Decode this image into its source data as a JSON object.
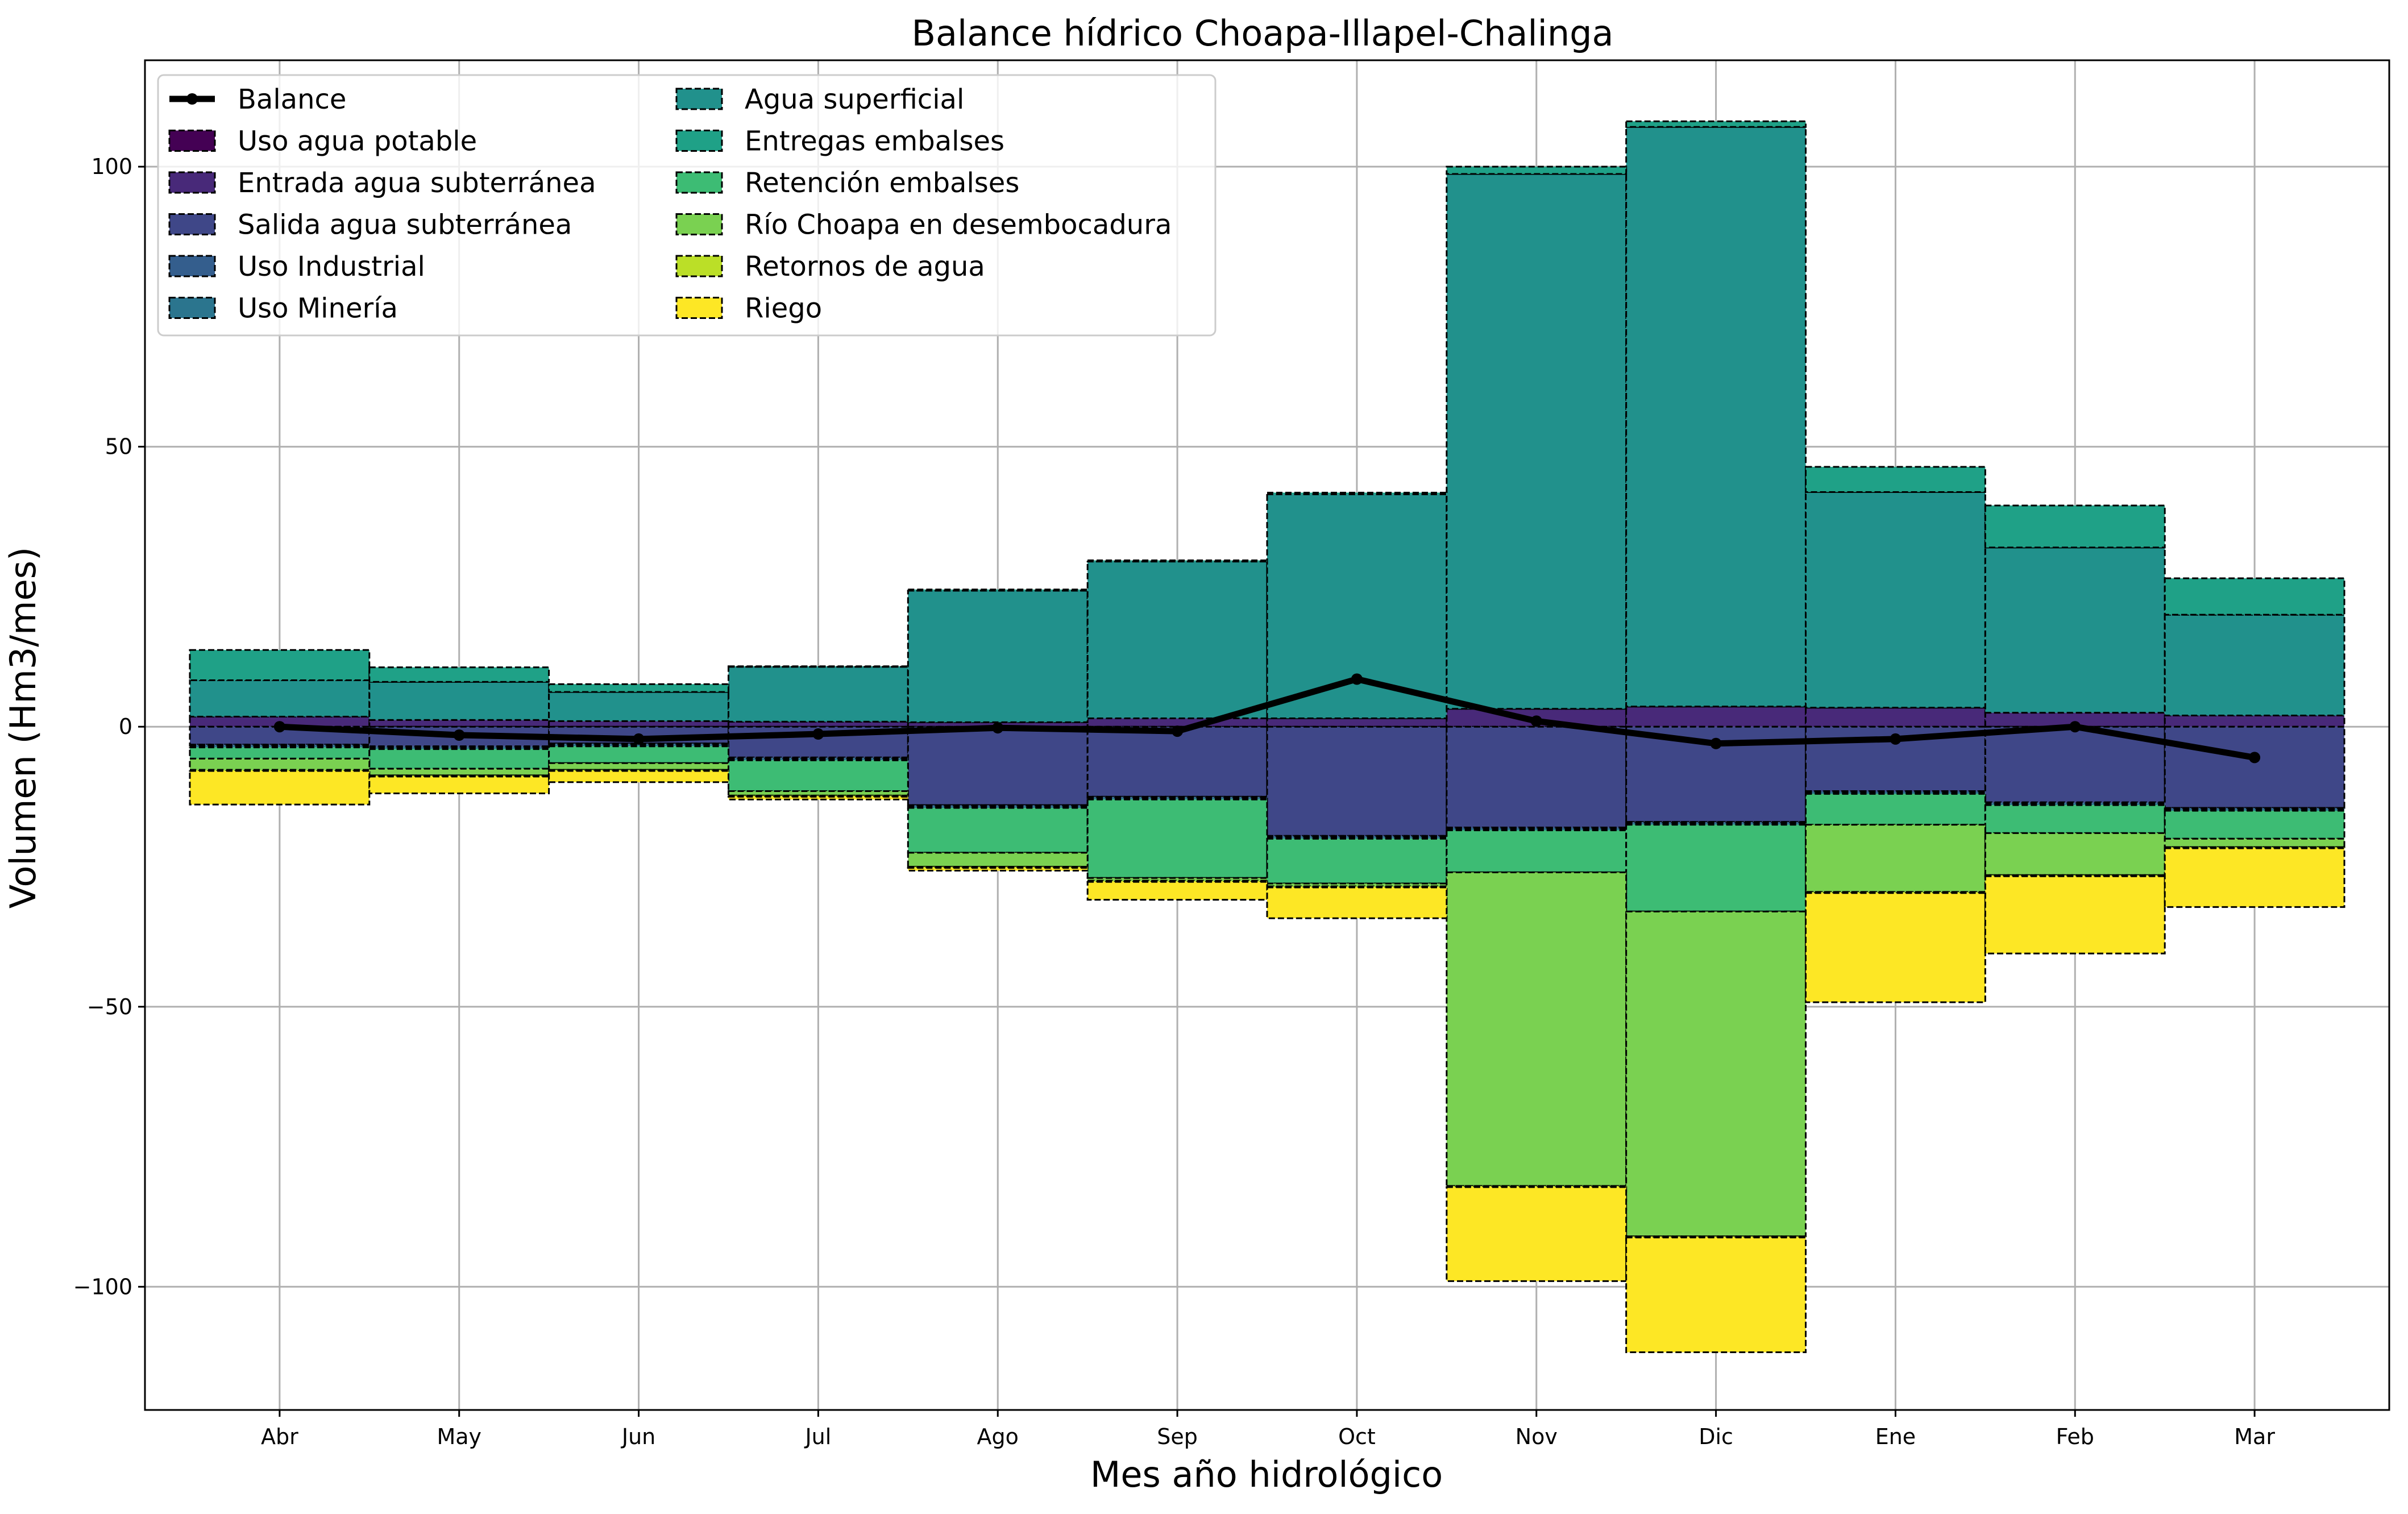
{
  "chart_data": {
    "type": "bar",
    "title": "Balance hídrico Choapa-Illapel-Chalinga",
    "xlabel": "Mes año hidrológico",
    "ylabel": "Volumen (Hm3/mes)",
    "ylim": [
      -122,
      119
    ],
    "yticks": [
      -100,
      -50,
      0,
      50,
      100
    ],
    "grid": true,
    "legend_position": "top-left",
    "categories": [
      "Abr",
      "May",
      "Jun",
      "Jul",
      "Ago",
      "Sep",
      "Oct",
      "Nov",
      "Dic",
      "Ene",
      "Feb",
      "Mar"
    ],
    "stacked": true,
    "series": [
      {
        "name": "Uso agua potable",
        "color": "#440154",
        "values": [
          0,
          0,
          0,
          0,
          0,
          0,
          0,
          0,
          0,
          0,
          0,
          0
        ]
      },
      {
        "name": "Entrada agua subterránea",
        "color": "#482979",
        "values": [
          1.8,
          1.2,
          1.0,
          0.9,
          0.8,
          1.5,
          1.5,
          3.2,
          3.6,
          3.4,
          2.5,
          2.0
        ]
      },
      {
        "name": "Salida agua subterránea",
        "color": "#3f4788",
        "values": [
          -3.2,
          -3.5,
          -3.0,
          -5.5,
          -14.0,
          -12.5,
          -19.5,
          -18.0,
          -17.0,
          -11.5,
          -13.5,
          -14.5
        ]
      },
      {
        "name": "Uso Industrial",
        "color": "#345e8d",
        "values": [
          -0.2,
          -0.2,
          -0.2,
          -0.2,
          -0.2,
          -0.2,
          -0.2,
          -0.2,
          -0.2,
          -0.2,
          -0.2,
          -0.2
        ]
      },
      {
        "name": "Uso Minería",
        "color": "#2b758e",
        "values": [
          -0.3,
          -0.3,
          -0.3,
          -0.3,
          -0.3,
          -0.3,
          -0.3,
          -0.3,
          -0.3,
          -0.3,
          -0.3,
          -0.3
        ]
      },
      {
        "name": "Agua superficial",
        "color": "#21918c",
        "values": [
          6.5,
          6.8,
          5.2,
          9.8,
          23.5,
          28.0,
          40.0,
          95.5,
          103.5,
          38.5,
          29.5,
          18.0
        ]
      },
      {
        "name": "Entregas embalses",
        "color": "#1fa187",
        "values": [
          5.4,
          2.6,
          1.4,
          0.1,
          0.2,
          0.2,
          0.3,
          1.3,
          1.0,
          4.5,
          7.5,
          6.5
        ]
      },
      {
        "name": "Retención embalses",
        "color": "#3dbc74",
        "values": [
          -2.0,
          -3.5,
          -3.0,
          -5.5,
          -8.0,
          -14.0,
          -8.0,
          -7.5,
          -15.5,
          -5.5,
          -5.0,
          -5.0
        ]
      },
      {
        "name": "Río Choapa en desembocadura",
        "color": "#7ad151",
        "values": [
          -2.0,
          -1.2,
          -1.2,
          -0.8,
          -2.5,
          -0.5,
          -0.5,
          -56.0,
          -58.0,
          -12.0,
          -7.5,
          -1.5
        ]
      },
      {
        "name": "Retornos de agua",
        "color": "#bbdf27",
        "values": [
          -0.2,
          -0.2,
          -0.2,
          -0.2,
          -0.2,
          -0.2,
          -0.2,
          -0.2,
          -0.2,
          -0.2,
          -0.2,
          -0.2
        ]
      },
      {
        "name": "Riego",
        "color": "#fde725",
        "values": [
          -6.0,
          -3.0,
          -2.0,
          -0.5,
          -0.5,
          -3.2,
          -5.5,
          -16.8,
          -20.5,
          -19.5,
          -13.8,
          -10.5
        ]
      }
    ],
    "line_series": {
      "name": "Balance",
      "color": "#000000",
      "values": [
        0,
        -1.5,
        -2.2,
        -1.3,
        -0.2,
        -0.8,
        8.5,
        1.0,
        -3.0,
        -2.2,
        0,
        -5.5
      ]
    }
  }
}
